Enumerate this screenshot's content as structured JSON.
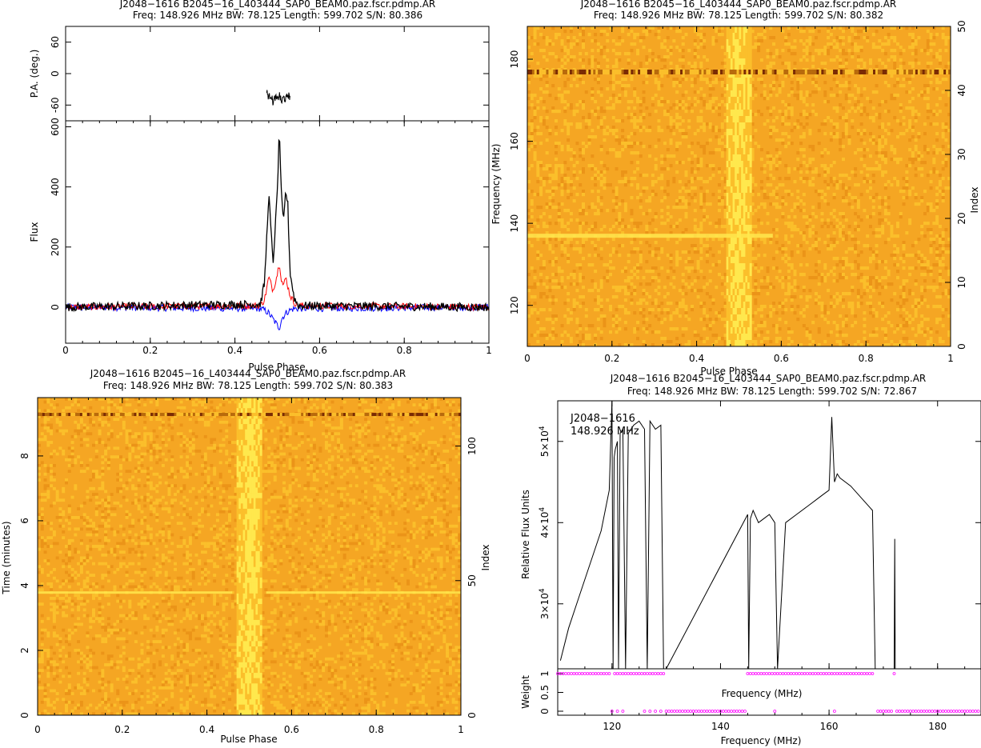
{
  "chart_data": [
    {
      "type": "line",
      "title": "J2048−1616 B2045−16_L403444_SAP0_BEAM0.paz.fscr.pdmp.AR",
      "subtitle": "Freq: 148.926 MHz BW: 78.125 Length: 599.702 S/N: 80.386",
      "xlabel": "Pulse Phase",
      "ylabel": "Flux",
      "pa_ylabel": "P.A. (deg.)",
      "xlim": [
        0,
        1
      ],
      "ylim": [
        -120,
        620
      ],
      "pa_ylim": [
        -90,
        90
      ],
      "xticks": [
        0,
        0.2,
        0.4,
        0.6,
        0.8,
        1
      ],
      "yticks": [
        0,
        200,
        400,
        600
      ],
      "pa_yticks": [
        60,
        0,
        -60
      ],
      "series": [
        {
          "color": "#000000",
          "x": [
            0,
            0.46,
            0.47,
            0.48,
            0.49,
            0.5,
            0.505,
            0.51,
            0.515,
            0.52,
            0.525,
            0.53,
            0.54,
            0.55,
            1
          ],
          "values": [
            0,
            10,
            80,
            380,
            140,
            380,
            590,
            360,
            280,
            390,
            340,
            120,
            30,
            5,
            0
          ]
        },
        {
          "color": "#ff0000",
          "x": [
            0,
            0.46,
            0.47,
            0.48,
            0.49,
            0.5,
            0.505,
            0.51,
            0.515,
            0.52,
            0.53,
            0.54,
            0.55,
            1
          ],
          "values": [
            0,
            5,
            25,
            100,
            55,
            110,
            150,
            90,
            70,
            100,
            40,
            15,
            5,
            0
          ]
        },
        {
          "color": "#0000ff",
          "x": [
            0,
            0.46,
            0.47,
            0.48,
            0.49,
            0.5,
            0.505,
            0.51,
            0.52,
            0.53,
            0.54,
            1
          ],
          "values": [
            0,
            -5,
            -10,
            -20,
            -40,
            -60,
            -70,
            -40,
            -20,
            -10,
            -5,
            0
          ]
        }
      ],
      "pa_series": {
        "x": [
          0.475,
          0.48,
          0.485,
          0.49,
          0.495,
          0.5,
          0.505,
          0.51,
          0.515,
          0.52,
          0.525,
          0.53
        ],
        "values": [
          -35,
          -45,
          -40,
          -55,
          -45,
          -50,
          -40,
          -55,
          -45,
          -50,
          -40,
          -45
        ]
      }
    },
    {
      "type": "heatmap",
      "title": "J2048−1616 B2045−16_L403444_SAP0_BEAM0.paz.fscr.pdmp.AR",
      "subtitle": "Freq: 148.926 MHz BW: 78.125 Length: 599.702 S/N: 80.382",
      "xlabel": "Pulse Phase",
      "ylabel": "Frequency (MHz)",
      "y2label": "Index",
      "xlim": [
        0,
        1
      ],
      "ylim": [
        110,
        188
      ],
      "y2lim": [
        0,
        50
      ],
      "xticks": [
        0,
        0.2,
        0.4,
        0.6,
        0.8,
        1
      ],
      "yticks": [
        120,
        140,
        160,
        180
      ],
      "y2ticks": [
        0,
        10,
        20,
        30,
        40,
        50
      ],
      "pulse_phase_range": [
        0.47,
        0.53
      ],
      "colors": [
        "#f5a623",
        "#fbbf2b",
        "#ffe84d",
        "#b86a0c",
        "#7a2b04"
      ]
    },
    {
      "type": "heatmap",
      "title": "J2048−1616 B2045−16_L403444_SAP0_BEAM0.paz.fscr.pdmp.AR",
      "subtitle": "Freq: 148.926 MHz BW: 78.125 Length: 599.702 S/N: 80.383",
      "xlabel": "Pulse Phase",
      "ylabel": "Time (minutes)",
      "y2label": "Index",
      "xlim": [
        0,
        1
      ],
      "ylim": [
        0,
        9.8
      ],
      "y2lim": [
        0,
        118
      ],
      "xticks": [
        0,
        0.2,
        0.4,
        0.6,
        0.8,
        1
      ],
      "yticks": [
        0,
        2,
        4,
        6,
        8
      ],
      "y2ticks": [
        0,
        50,
        100
      ],
      "pulse_phase_range": [
        0.47,
        0.53
      ],
      "colors": [
        "#f5a623",
        "#fbbf2b",
        "#ffe84d",
        "#b86a0c",
        "#7a2b04"
      ]
    },
    {
      "type": "line",
      "title": "J2048−1616 B2045−16_L403444_SAP0_BEAM0.paz.fscr.pdmp.AR",
      "subtitle": "Freq: 148.926 MHz BW: 78.125 Length: 599.702 S/N: 72.867",
      "xlabel": "Frequency (MHz)",
      "ylabel": "Relative Flux Units",
      "weight_ylabel": "Weight",
      "weight_inner_label": "Frequency (MHz)",
      "annotation_name": "J2048−1616",
      "annotation_freq": "148.926 MHz",
      "xlim": [
        110,
        188
      ],
      "ylim": [
        22000,
        55000
      ],
      "xticks": [
        120,
        140,
        160,
        180
      ],
      "yticks": [
        {
          "value": 30000,
          "mant": "3×10",
          "exp": "4"
        },
        {
          "value": 40000,
          "mant": "4×10",
          "exp": "4"
        },
        {
          "value": 50000,
          "mant": "5×10",
          "exp": "4"
        }
      ],
      "weight_ylim": [
        0,
        1
      ],
      "weight_yticks": [
        0,
        0.5,
        1
      ],
      "spectrum": {
        "x": [
          110.5,
          112,
          114,
          116,
          118,
          119.5,
          120,
          120.2,
          120.4,
          120.6,
          121,
          121.2,
          121.5,
          122,
          122.5,
          123,
          124,
          125,
          126,
          126.5,
          127,
          128,
          129,
          129.5,
          130,
          145,
          145.2,
          145.5,
          146,
          147,
          148,
          149,
          150,
          150.5,
          152,
          154,
          156,
          158,
          159,
          160,
          160.5,
          161,
          161.5,
          162,
          164,
          166,
          168,
          168.5,
          169,
          172,
          172.1,
          172.2
        ],
        "values": [
          23000,
          27000,
          31000,
          35000,
          39000,
          44000,
          55000,
          22000,
          48000,
          49000,
          50000,
          22000,
          51000,
          51500,
          22000,
          51000,
          52000,
          52500,
          51500,
          22000,
          52500,
          51500,
          52000,
          22000,
          22000,
          41000,
          22000,
          40500,
          41500,
          40000,
          40500,
          41000,
          40000,
          22000,
          40000,
          41000,
          42000,
          43000,
          43500,
          44000,
          53000,
          45000,
          46000,
          45500,
          44500,
          43000,
          41500,
          22000,
          22000,
          22000,
          38000,
          22000
        ]
      },
      "weights_on_x": [
        110,
        110.5,
        111,
        111.5,
        112,
        112.5,
        113,
        113.5,
        114,
        114.5,
        115,
        115.5,
        116,
        116.5,
        117,
        117.5,
        118,
        118.5,
        119,
        119.5,
        120.5,
        121,
        121.5,
        122,
        122.5,
        123,
        123.5,
        124,
        124.5,
        125,
        125.5,
        126,
        126.5,
        127,
        127.5,
        128,
        128.5,
        129,
        129.5,
        145,
        145.5,
        146,
        146.5,
        147,
        147.5,
        148,
        148.5,
        149,
        149.5,
        150,
        150.5,
        151,
        151.5,
        152,
        152.5,
        153,
        153.5,
        154,
        154.5,
        155,
        155.5,
        156,
        156.5,
        157,
        157.5,
        158,
        158.5,
        159,
        159.5,
        160,
        160.5,
        161,
        161.5,
        162,
        162.5,
        163,
        163.5,
        164,
        164.5,
        165,
        165.5,
        166,
        166.5,
        167,
        167.5,
        168,
        172
      ],
      "weights_off_x": [
        120,
        121,
        122,
        126,
        127,
        128,
        129,
        130,
        130.5,
        131,
        131.5,
        132,
        132.5,
        133,
        133.5,
        134,
        134.5,
        135,
        135.5,
        136,
        136.5,
        137,
        137.5,
        138,
        138.5,
        139,
        139.5,
        140,
        140.5,
        141,
        141.5,
        142,
        142.5,
        143,
        143.5,
        144,
        144.5,
        150,
        161,
        169,
        169.5,
        170,
        170.5,
        171,
        171.5,
        172.5,
        173,
        173.5,
        174,
        174.5,
        175,
        175.5,
        176,
        176.5,
        177,
        177.5,
        178,
        178.5,
        179,
        179.5,
        180,
        180.5,
        181,
        181.5,
        182,
        182.5,
        183,
        183.5,
        184,
        184.5,
        185,
        185.5,
        186,
        186.5,
        187,
        187.5
      ],
      "weight_color": "#ff00ff"
    }
  ]
}
